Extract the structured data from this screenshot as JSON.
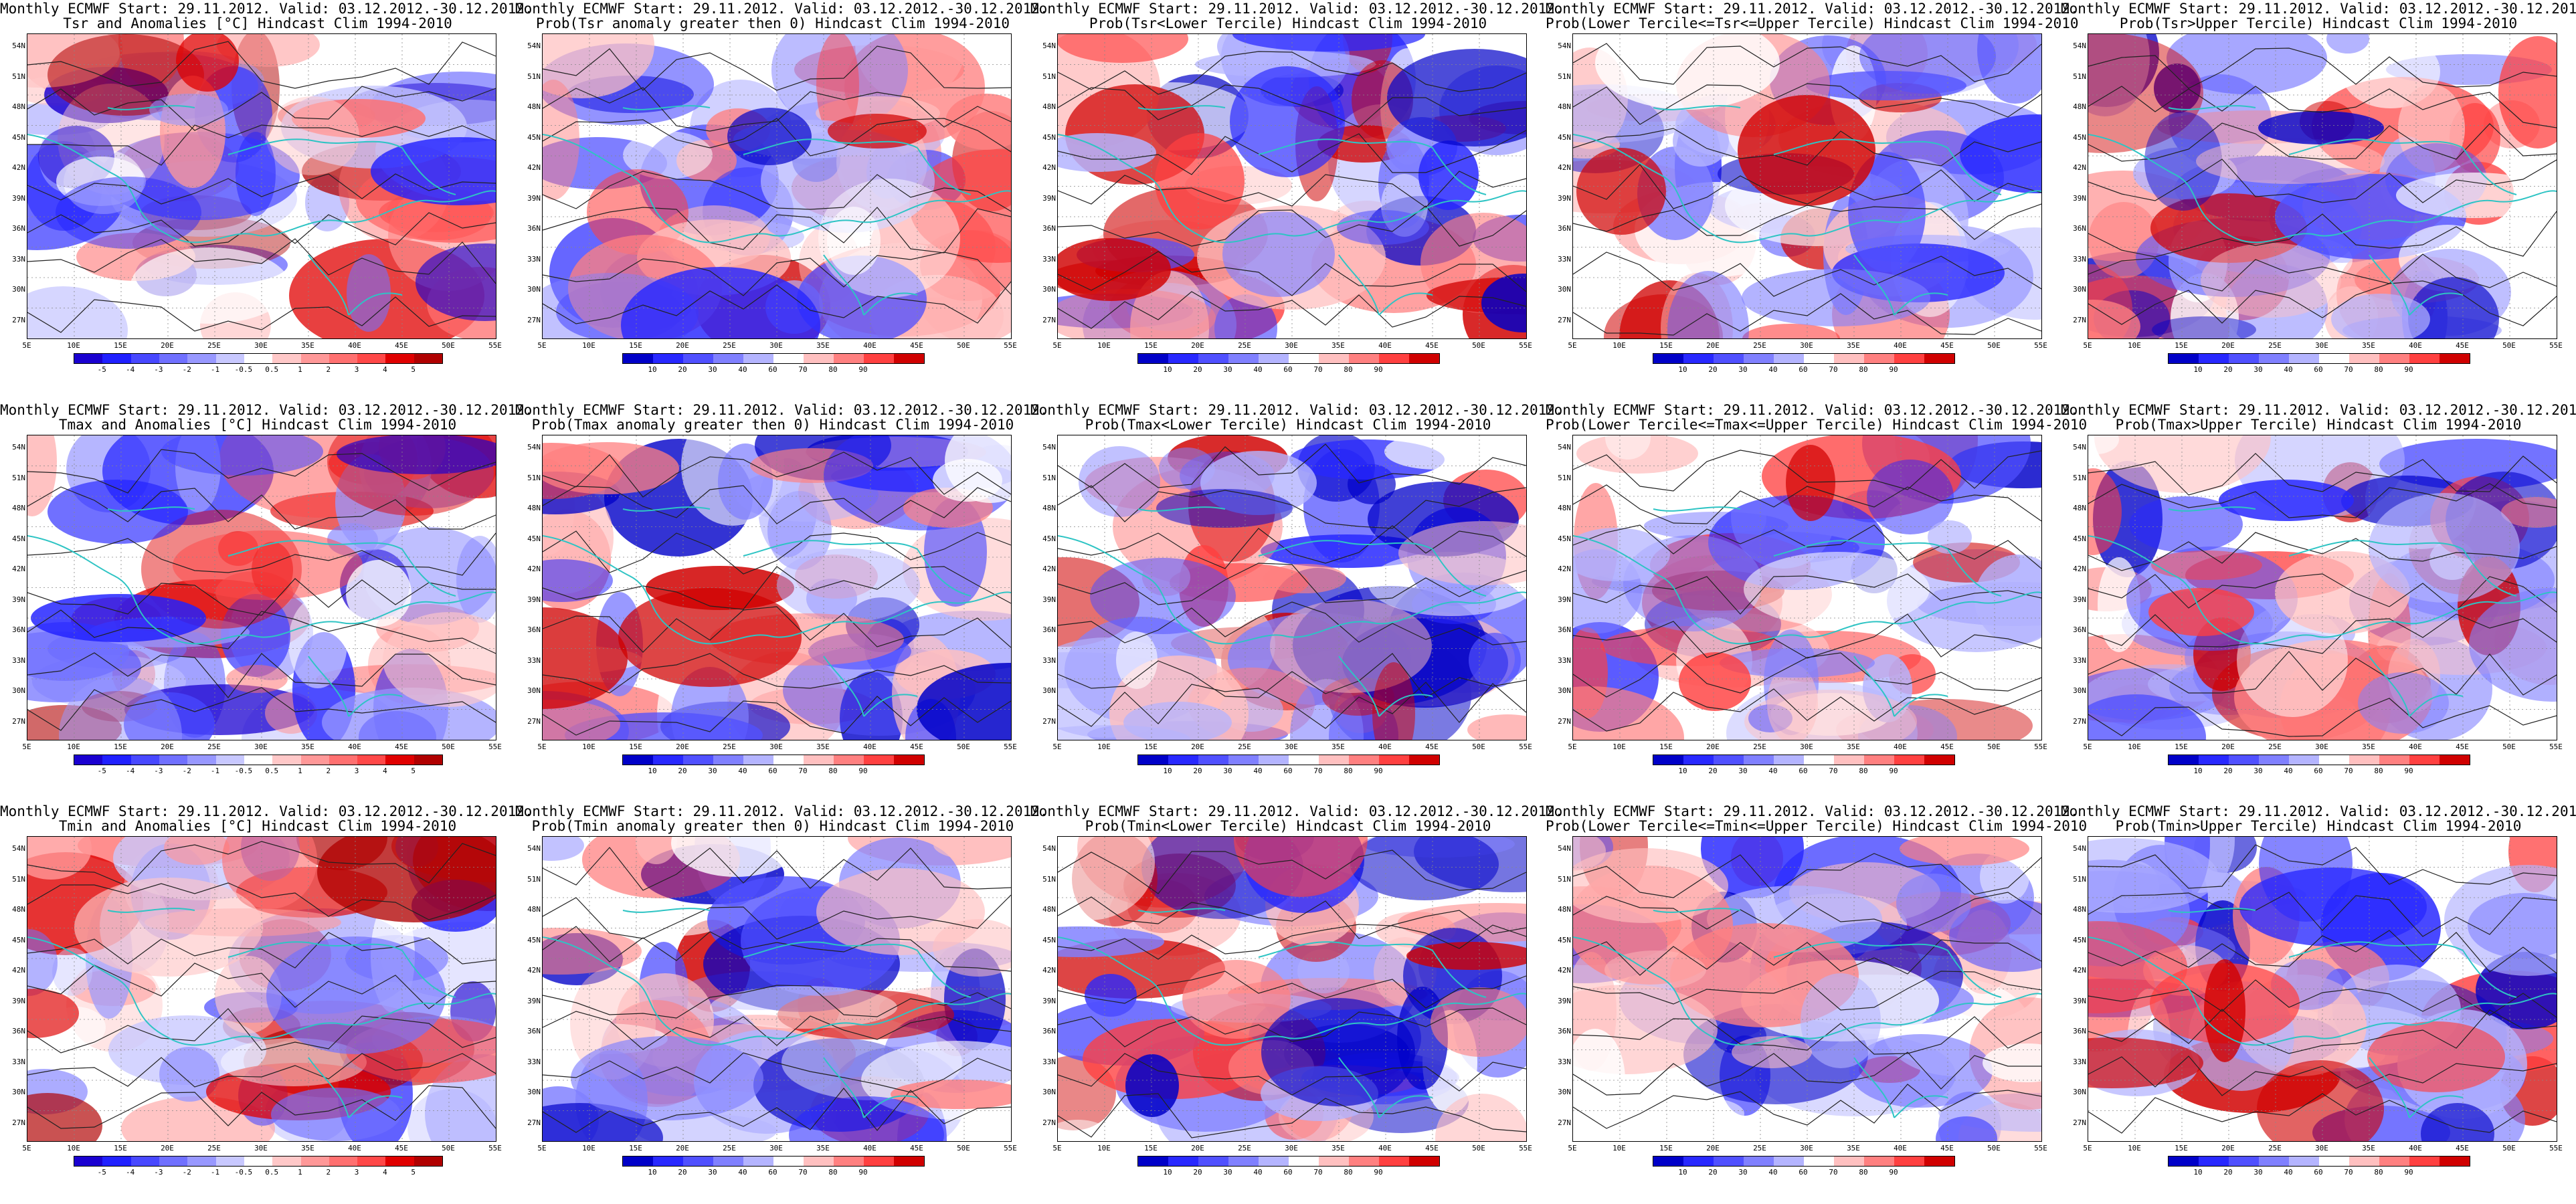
{
  "header_line": "Monthly ECMWF Start: 29.11.2012. Valid: 03.12.2012.-30.12.2012.",
  "lat_ticks": [
    "54N",
    "51N",
    "48N",
    "45N",
    "42N",
    "39N",
    "36N",
    "33N",
    "30N",
    "27N"
  ],
  "lon_ticks": [
    "5E",
    "10E",
    "15E",
    "20E",
    "25E",
    "30E",
    "35E",
    "40E",
    "45E",
    "50E",
    "55E"
  ],
  "colors": {
    "coast": "#2ec4c4",
    "contour": "#222222",
    "anomaly_scale": [
      "#1a00d0",
      "#2020ff",
      "#4848ff",
      "#7070ff",
      "#9898ff",
      "#c8c8ff",
      "#ffffff",
      "#ffc8c8",
      "#ff9898",
      "#ff7070",
      "#ff4848",
      "#e00000",
      "#b00000"
    ],
    "prob_scale": [
      "#0000c8",
      "#2828ff",
      "#5050ff",
      "#8080ff",
      "#b4b4ff",
      "#ffffff",
      "#ffc0c0",
      "#ff8080",
      "#ff4040",
      "#d00000"
    ]
  },
  "panels": [
    {
      "title2": "Tsr and Anomalies [°C] Hindcast Clim 1994-2010",
      "scale": "anomaly",
      "cbar_labels": [
        "-5",
        "-4",
        "-3",
        "-2",
        "-1",
        "-0.5",
        "0.5",
        "1",
        "2",
        "3",
        "4",
        "5"
      ]
    },
    {
      "title2": "Prob(Tsr anomaly greater then 0) Hindcast Clim 1994-2010",
      "scale": "prob",
      "cbar_labels": [
        "10",
        "20",
        "30",
        "40",
        "60",
        "70",
        "80",
        "90"
      ]
    },
    {
      "title2": "Prob(Tsr<Lower Tercile) Hindcast Clim 1994-2010",
      "scale": "prob",
      "cbar_labels": [
        "10",
        "20",
        "30",
        "40",
        "60",
        "70",
        "80",
        "90"
      ]
    },
    {
      "title2": "Prob(Lower Tercile<=Tsr<=Upper Tercile) Hindcast Clim 1994-2010",
      "scale": "prob",
      "cbar_labels": [
        "10",
        "20",
        "30",
        "40",
        "60",
        "70",
        "80",
        "90"
      ]
    },
    {
      "title2": "Prob(Tsr>Upper Tercile) Hindcast Clim 1994-2010",
      "scale": "prob",
      "cbar_labels": [
        "10",
        "20",
        "30",
        "40",
        "60",
        "70",
        "80",
        "90"
      ]
    },
    {
      "title2": "Tmax and Anomalies [°C] Hindcast Clim 1994-2010",
      "scale": "anomaly",
      "cbar_labels": [
        "-5",
        "-4",
        "-3",
        "-2",
        "-1",
        "-0.5",
        "0.5",
        "1",
        "2",
        "3",
        "4",
        "5"
      ]
    },
    {
      "title2": "Prob(Tmax anomaly greater then 0) Hindcast Clim 1994-2010",
      "scale": "prob",
      "cbar_labels": [
        "10",
        "20",
        "30",
        "40",
        "60",
        "70",
        "80",
        "90"
      ]
    },
    {
      "title2": "Prob(Tmax<Lower Tercile) Hindcast Clim 1994-2010",
      "scale": "prob",
      "cbar_labels": [
        "10",
        "20",
        "30",
        "40",
        "60",
        "70",
        "80",
        "90"
      ]
    },
    {
      "title2": "Prob(Lower Tercile<=Tmax<=Upper Tercile) Hindcast Clim 1994-2010",
      "scale": "prob",
      "cbar_labels": [
        "10",
        "20",
        "30",
        "40",
        "60",
        "70",
        "80",
        "90"
      ]
    },
    {
      "title2": "Prob(Tmax>Upper Tercile) Hindcast Clim 1994-2010",
      "scale": "prob",
      "cbar_labels": [
        "10",
        "20",
        "30",
        "40",
        "60",
        "70",
        "80",
        "90"
      ]
    },
    {
      "title2": "Tmin and Anomalies [°C] Hindcast Clim 1994-2010",
      "scale": "anomaly",
      "cbar_labels": [
        "-5",
        "-4",
        "-3",
        "-2",
        "-1",
        "-0.5",
        "0.5",
        "1",
        "2",
        "3",
        "4",
        "5"
      ]
    },
    {
      "title2": "Prob(Tmin anomaly greater then 0) Hindcast Clim 1994-2010",
      "scale": "prob",
      "cbar_labels": [
        "10",
        "20",
        "30",
        "40",
        "60",
        "70",
        "80",
        "90"
      ]
    },
    {
      "title2": "Prob(Tmin<Lower Tercile) Hindcast Clim 1994-2010",
      "scale": "prob",
      "cbar_labels": [
        "10",
        "20",
        "30",
        "40",
        "60",
        "70",
        "80",
        "90"
      ]
    },
    {
      "title2": "Prob(Lower Tercile<=Tmin<=Upper Tercile) Hindcast Clim 1994-2010",
      "scale": "prob",
      "cbar_labels": [
        "10",
        "20",
        "30",
        "40",
        "60",
        "70",
        "80",
        "90"
      ]
    },
    {
      "title2": "Prob(Tmin>Upper Tercile) Hindcast Clim 1994-2010",
      "scale": "prob",
      "cbar_labels": [
        "10",
        "20",
        "30",
        "40",
        "60",
        "70",
        "80",
        "90"
      ]
    }
  ]
}
